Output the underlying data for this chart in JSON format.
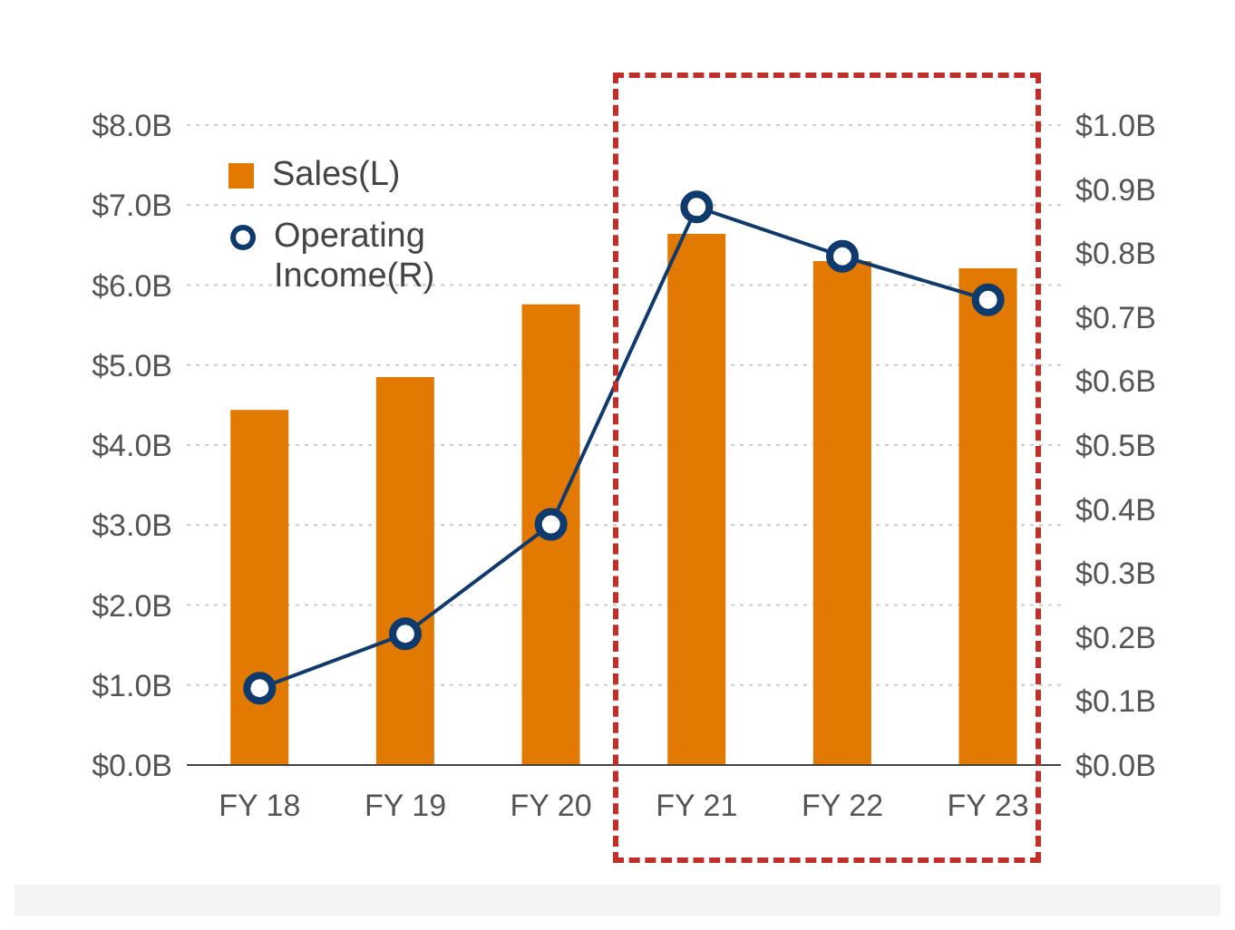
{
  "chart_data": {
    "type": "bar",
    "categories": [
      "FY 18",
      "FY 19",
      "FY 20",
      "FY 21",
      "FY 22",
      "FY 23"
    ],
    "series": [
      {
        "name": "Sales(L)",
        "color": "#e27900",
        "values": [
          4.44,
          4.85,
          5.76,
          6.64,
          6.3,
          6.21
        ]
      },
      {
        "name": "Operating Income(R)",
        "type": "line",
        "axis": "y2",
        "color": "#0e3a6e",
        "values": [
          0.12,
          0.205,
          0.376,
          0.872,
          0.795,
          0.727
        ]
      }
    ],
    "ylim": [
      0,
      8
    ],
    "yticks": [
      {
        "value": 0,
        "label": "$0.0B"
      },
      {
        "value": 1,
        "label": "$1.0B"
      },
      {
        "value": 2,
        "label": "$2.0B"
      },
      {
        "value": 3,
        "label": "$3.0B"
      },
      {
        "value": 4,
        "label": "$4.0B"
      },
      {
        "value": 5,
        "label": "$5.0B"
      },
      {
        "value": 6,
        "label": "$6.0B"
      },
      {
        "value": 7,
        "label": "$7.0B"
      },
      {
        "value": 8,
        "label": "$8.0B"
      }
    ],
    "y2lim": [
      0,
      1
    ],
    "y2ticks": [
      {
        "value": 0,
        "label": "$0.0B"
      },
      {
        "value": 0.1,
        "label": "$0.1B"
      },
      {
        "value": 0.2,
        "label": "$0.2B"
      },
      {
        "value": 0.3,
        "label": "$0.3B"
      },
      {
        "value": 0.4,
        "label": "$0.4B"
      },
      {
        "value": 0.5,
        "label": "$0.5B"
      },
      {
        "value": 0.6,
        "label": "$0.6B"
      },
      {
        "value": 0.7,
        "label": "$0.7B"
      },
      {
        "value": 0.8,
        "label": "$0.8B"
      },
      {
        "value": 0.9,
        "label": "$0.9B"
      },
      {
        "value": 1,
        "label": "$1.0B"
      }
    ],
    "grid": "y",
    "legend": "top left",
    "marker": "circle",
    "line_style": "solid"
  }
}
